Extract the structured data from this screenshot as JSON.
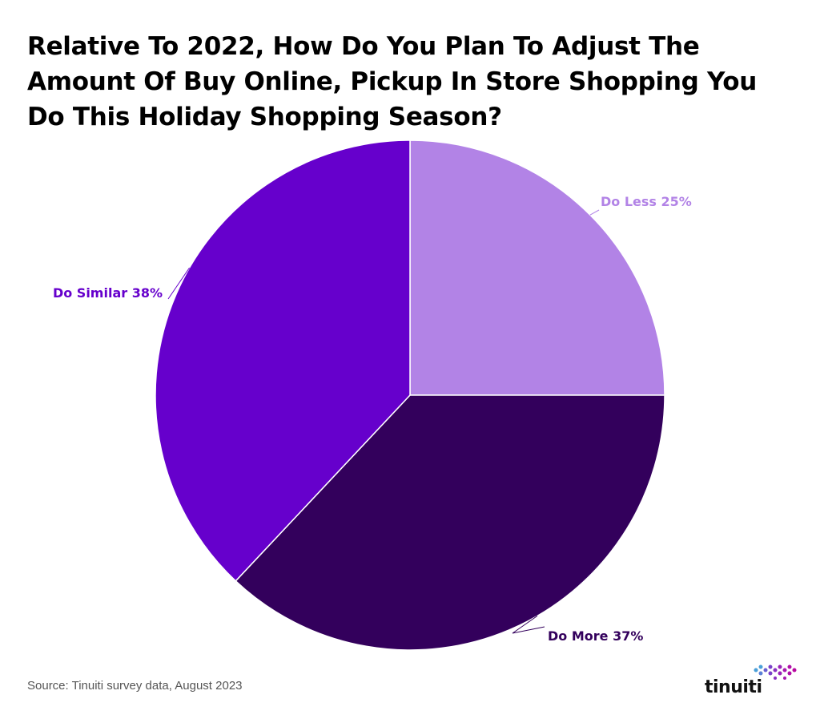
{
  "title": "Relative To 2022, How Do You Plan To Adjust The Amount Of Buy Online, Pickup In Store Shopping You Do This Holiday Shopping Season?",
  "source": "Source: Tinuiti survey data, August 2023",
  "logo": {
    "text": "tinuiti",
    "icon": "tinuiti-dots-logo"
  },
  "chart_data": {
    "type": "pie",
    "title": "Relative To 2022, How Do You Plan To Adjust The Amount Of Buy Online, Pickup In Store Shopping You Do This Holiday Shopping Season?",
    "categories": [
      "Do Less",
      "Do More",
      "Do Similar"
    ],
    "values": [
      25,
      37,
      38
    ],
    "unit": "%",
    "labels": [
      "Do Less 25%",
      "Do More 37%",
      "Do Similar 38%"
    ],
    "colors": [
      "#b283e6",
      "#33005c",
      "#6600cc"
    ],
    "start_angle": "12 o'clock",
    "direction": "clockwise",
    "legend": "none"
  }
}
